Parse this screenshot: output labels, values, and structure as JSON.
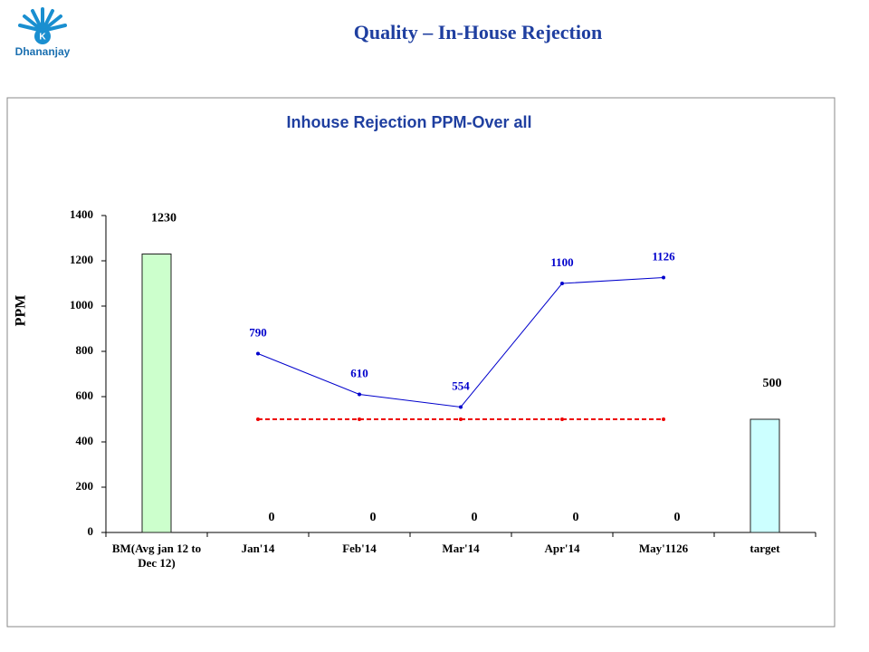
{
  "header": {
    "title": "Quality – In-House Rejection",
    "logo_text": "Dhananjay"
  },
  "chart_data": {
    "type": "bar",
    "title": "Inhouse Rejection PPM-Over all",
    "ylabel": "PPM",
    "categories": [
      "BM(Avg jan 12 to Dec 12)",
      "Jan'14",
      "Feb'14",
      "Mar'14",
      "Apr'14",
      "May'1126",
      "target"
    ],
    "ylim": [
      0,
      1400
    ],
    "yticks": [
      0,
      200,
      400,
      600,
      800,
      1000,
      1200,
      1400
    ],
    "grid": false,
    "series": [
      {
        "type": "bar",
        "colors": [
          "#ccffcc",
          "#ccffcc",
          "#ccffcc",
          "#ccffcc",
          "#ccffcc",
          "#ccffcc",
          "#ccffff"
        ],
        "values": [
          1230,
          0,
          0,
          0,
          0,
          0,
          500
        ]
      },
      {
        "type": "line",
        "color": "#0000cc",
        "label_color": "#0000cc",
        "values": [
          null,
          790,
          610,
          554,
          1100,
          1126,
          null
        ]
      },
      {
        "type": "line",
        "color": "#ee0000",
        "dashed": true,
        "values": [
          null,
          500,
          500,
          500,
          500,
          500,
          null
        ]
      }
    ]
  }
}
